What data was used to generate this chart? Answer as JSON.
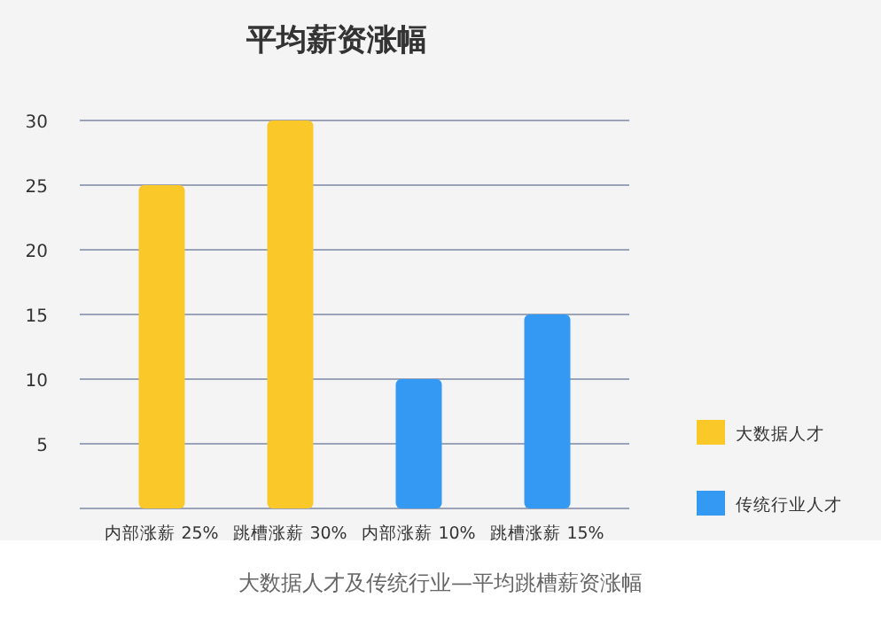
{
  "chart_data": {
    "type": "bar",
    "title": "平均薪资涨幅",
    "categories": [
      "内部涨薪 25%",
      "跳槽涨薪 30%",
      "内部涨薪 10%",
      "跳槽涨薪 15%"
    ],
    "series": [
      {
        "name": "大数据人才",
        "color": "#fbc82a",
        "values": [
          25,
          30,
          null,
          null
        ]
      },
      {
        "name": "传统行业人才",
        "color": "#3399f3",
        "values": [
          null,
          null,
          10,
          15
        ]
      }
    ],
    "ylim": [
      0,
      30
    ],
    "yticks": [
      5,
      10,
      15,
      20,
      25,
      30
    ],
    "grid": "y",
    "legend": "right",
    "annotations": [
      "大数据人才及传统行业—平均跳槽薪资涨幅"
    ]
  }
}
